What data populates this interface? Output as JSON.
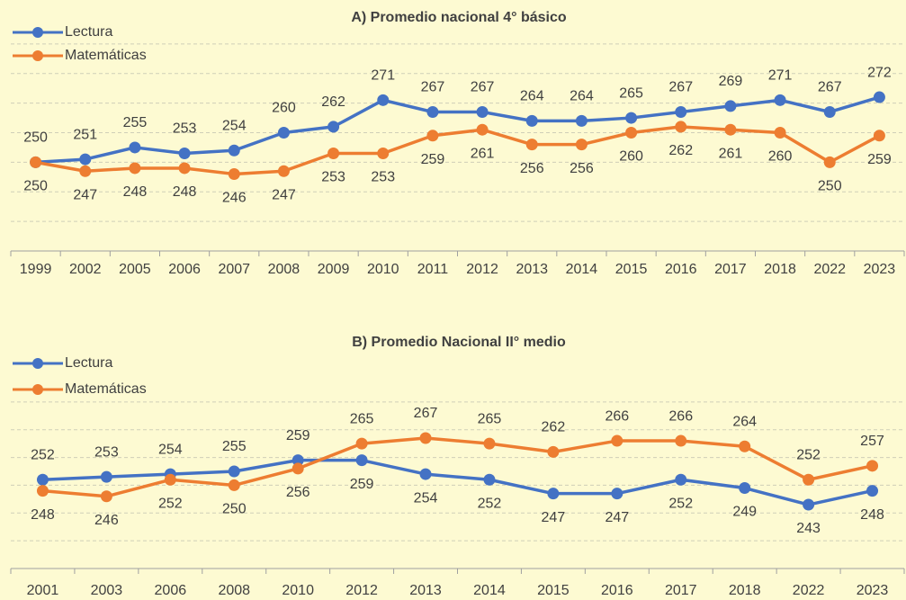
{
  "chart_data": [
    {
      "type": "line",
      "title": "A) Promedio nacional 4° básico",
      "categories": [
        "1999",
        "2002",
        "2005",
        "2006",
        "2007",
        "2008",
        "2009",
        "2010",
        "2011",
        "2012",
        "2013",
        "2014",
        "2015",
        "2016",
        "2017",
        "2018",
        "2022",
        "2023"
      ],
      "series": [
        {
          "name": "Lectura",
          "color": "#4472c4",
          "values": [
            250,
            251,
            255,
            253,
            254,
            260,
            262,
            271,
            267,
            267,
            264,
            264,
            265,
            267,
            269,
            271,
            267,
            272
          ]
        },
        {
          "name": "Matemáticas",
          "color": "#ed7d31",
          "values": [
            250,
            247,
            248,
            248,
            246,
            247,
            253,
            253,
            259,
            261,
            256,
            256,
            260,
            262,
            261,
            260,
            250,
            259
          ]
        }
      ],
      "ylim": [
        220,
        300
      ],
      "yticks": [
        230,
        240,
        250,
        260,
        270,
        280,
        290
      ],
      "grid": true,
      "legend": "top-left"
    },
    {
      "type": "line",
      "title": "B) Promedio Nacional II° medio",
      "categories": [
        "2001",
        "2003",
        "2006",
        "2008",
        "2010",
        "2012",
        "2013",
        "2014",
        "2015",
        "2016",
        "2017",
        "2018",
        "2022",
        "2023"
      ],
      "series": [
        {
          "name": "Lectura",
          "color": "#4472c4",
          "values": [
            252,
            253,
            254,
            255,
            259,
            259,
            254,
            252,
            247,
            247,
            252,
            249,
            243,
            248
          ]
        },
        {
          "name": "Matemáticas",
          "color": "#ed7d31",
          "values": [
            248,
            246,
            252,
            250,
            256,
            265,
            267,
            265,
            262,
            266,
            266,
            264,
            252,
            257
          ]
        }
      ],
      "ylim": [
        220,
        290
      ],
      "yticks": [
        230,
        240,
        250,
        260,
        270,
        280
      ],
      "grid": true,
      "legend": "top-left"
    }
  ]
}
